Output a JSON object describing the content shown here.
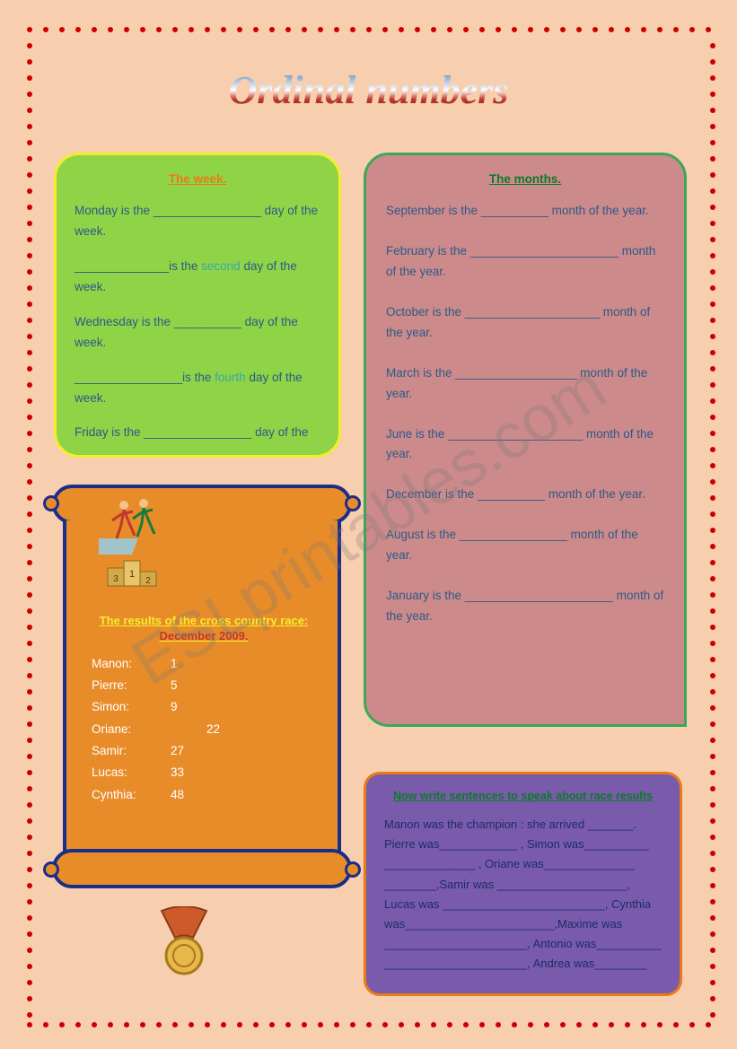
{
  "title": "Ordinal numbers",
  "watermark": "ESLprintables.com",
  "week": {
    "heading": "The week.",
    "lines": [
      {
        "pre": "Monday is the ",
        "blank": "________________",
        "post": " day of the week."
      },
      {
        "pre": "",
        "blank": "______________",
        "post": "is the ",
        "hl": "second",
        "post2": " day of the week."
      },
      {
        "pre": "Wednesday is the ",
        "blank": "__________",
        "post": " day of the week."
      },
      {
        "pre": "",
        "blank": "________________",
        "post": "is the ",
        "hl": "fourth",
        "post2": " day of the week."
      },
      {
        "pre": "Friday is the ",
        "blank": "________________",
        "post": " day of the"
      }
    ]
  },
  "months": {
    "heading": "The months.",
    "items": [
      "September is the __________ month of the year.",
      "February is the ______________________ month of the year.",
      "October is the ____________________ month of the year.",
      "March is the __________________ month of the year.",
      "June is the ____________________ month of the year.",
      "December is the __________ month of the year.",
      "August is the ________________ month of the year.",
      "January is the ______________________ month of the year."
    ]
  },
  "race": {
    "heading_main": "The results of the cross country race: ",
    "heading_dec": "December 2009.",
    "rows": [
      {
        "name": "Manon:",
        "num": "1"
      },
      {
        "name": "Pierre:",
        "num": "5"
      },
      {
        "name": "Simon:",
        "num": "9"
      },
      {
        "name": "Oriane:",
        "num": "22"
      },
      {
        "name": "Samir:",
        "num": "27"
      },
      {
        "name": "Lucas:",
        "num": "33"
      },
      {
        "name": "Cynthia:",
        "num": "48"
      }
    ]
  },
  "results": {
    "heading": "Now write sentences to speak about race results",
    "body": "Manon was the champion : she arrived _______.\nPierre was____________ , Simon was__________ ______________ , Oriane was______________ ________,Samir was ____________________,\nLucas was _________________________, Cynthia was_______________________,Maxime was ______________________, Antonio was__________ ______________________, Andrea was________"
  },
  "colors": {
    "page_bg": "#f7cfae",
    "dot": "#cc0000",
    "week_bg": "#8fd447",
    "week_border": "#f6ed2a",
    "week_text": "#2b5a87",
    "week_head": "#e87a1a",
    "week_hl": "#3ba7a7",
    "months_bg": "#cd8a8b",
    "months_border": "#3aa85a",
    "months_text": "#2b5a87",
    "months_head": "#0a7a2a",
    "scroll_bg": "#e88c2a",
    "scroll_border": "#1a2d8a",
    "scroll_text": "#ffffff",
    "scroll_head": "#f6ed2a",
    "scroll_dec": "#c0392b",
    "purple_bg": "#7a5aaa",
    "purple_border": "#e87a1a",
    "purple_text": "#1a2d6a",
    "purple_head": "#0a7a2a"
  }
}
